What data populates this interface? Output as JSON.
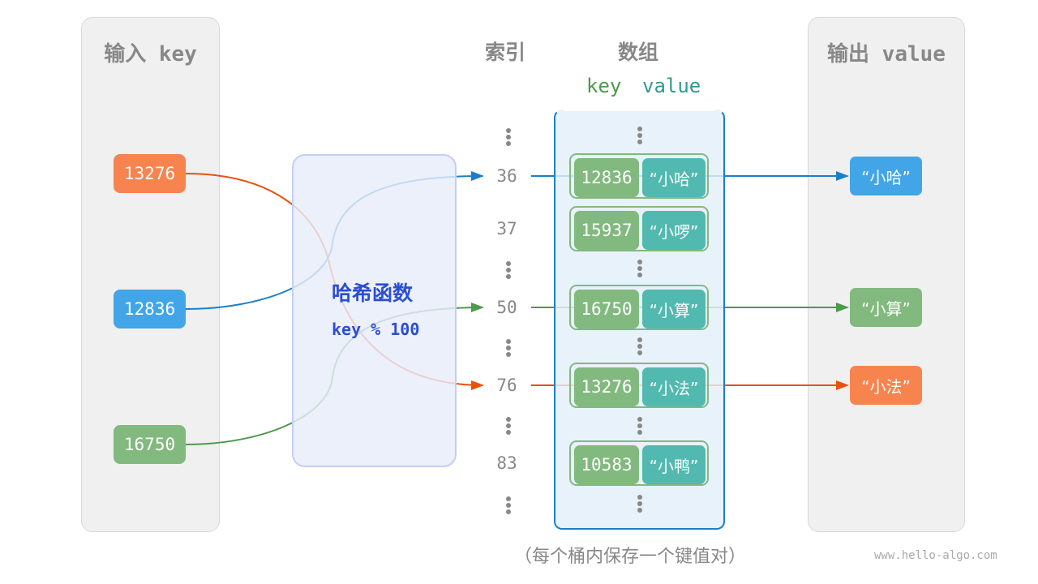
{
  "input_panel": {
    "title": "输入 key",
    "keys": [
      "13276",
      "12836",
      "16750"
    ]
  },
  "output_panel": {
    "title": "输出 value",
    "values": [
      "“小哈”",
      "“小算”",
      "“小法”"
    ]
  },
  "hash_function": {
    "title": "哈希函数",
    "formula": "key % 100"
  },
  "headers": {
    "index": "索引",
    "array": "数组",
    "key": "key",
    "value": "value"
  },
  "buckets": [
    {
      "index": "36",
      "key": "12836",
      "value": "“小哈”"
    },
    {
      "index": "37",
      "key": "15937",
      "value": "“小啰”"
    },
    {
      "index": "50",
      "key": "16750",
      "value": "“小算”"
    },
    {
      "index": "76",
      "key": "13276",
      "value": "“小法”"
    },
    {
      "index": "83",
      "key": "10583",
      "value": "“小鸭”"
    }
  ],
  "caption": "（每个桶内保存一个键值对）",
  "watermark": "www.hello-algo.com",
  "colors": {
    "orange": "#f7834f",
    "blue": "#42a5e8",
    "green": "#82b97e",
    "teal": "#52b9b0",
    "hash_text": "#2b4ed1"
  }
}
